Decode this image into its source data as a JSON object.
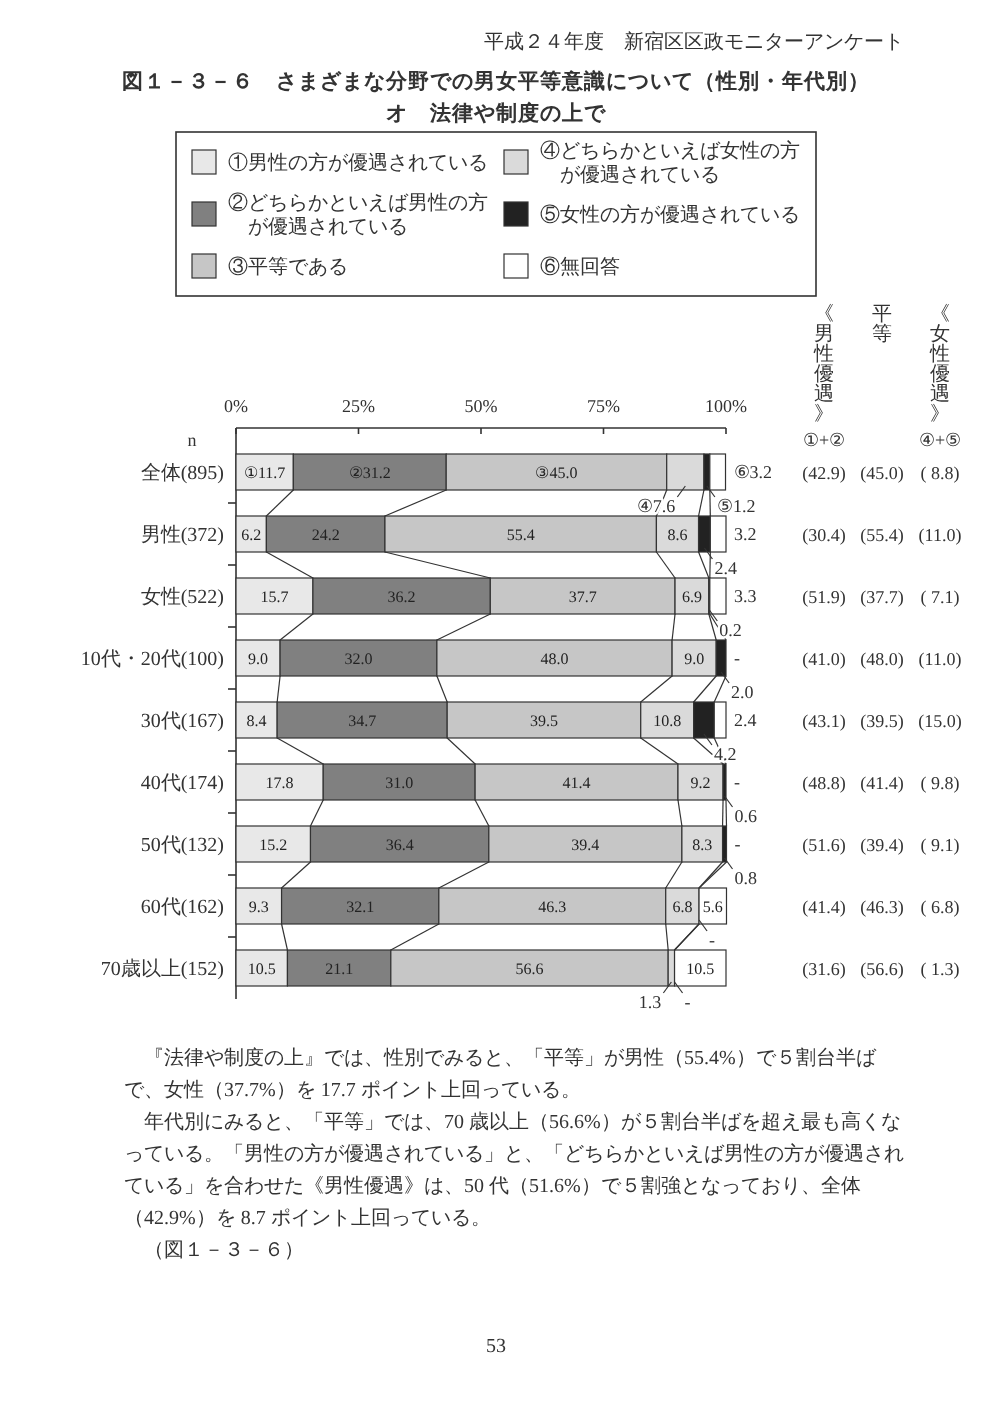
{
  "chart_data": {
    "type": "bar",
    "orientation": "horizontal",
    "stacked": true,
    "title": "図１－３－６　さまざまな分野での男女平等意識について（性別・年代別）",
    "subtitle": "オ　法律や制度の上で",
    "ylabel": "n",
    "categories": [
      "全体(895)",
      "男性(372)",
      "女性(522)",
      "10代・20代(100)",
      "30代(167)",
      "40代(174)",
      "50代(132)",
      "60代(162)",
      "70歳以上(152)"
    ],
    "series": [
      {
        "name": "①男性の方が優遇されている",
        "color": "#e8e8e8",
        "values": [
          11.7,
          6.2,
          15.7,
          9.0,
          8.4,
          17.8,
          15.2,
          9.3,
          10.5
        ],
        "value_labels": [
          "①11.7",
          "6.2",
          "15.7",
          "9.0",
          "8.4",
          "17.8",
          "15.2",
          "9.3",
          "10.5"
        ]
      },
      {
        "name": "②どちらかといえば男性の方が優遇されている",
        "color": "#808080",
        "values": [
          31.2,
          24.2,
          36.2,
          32.0,
          34.7,
          31.0,
          36.4,
          32.1,
          21.1
        ],
        "value_labels": [
          "②31.2",
          "24.2",
          "36.2",
          "32.0",
          "34.7",
          "31.0",
          "36.4",
          "32.1",
          "21.1"
        ]
      },
      {
        "name": "③平等である",
        "color": "#c6c6c6",
        "values": [
          45.0,
          55.4,
          37.7,
          48.0,
          39.5,
          41.4,
          39.4,
          46.3,
          56.6
        ],
        "value_labels": [
          "③45.0",
          "55.4",
          "37.7",
          "48.0",
          "39.5",
          "41.4",
          "39.4",
          "46.3",
          "56.6"
        ]
      },
      {
        "name": "④どちらかといえば女性の方が優遇されている",
        "color": "#dadada",
        "values": [
          7.6,
          8.6,
          6.9,
          9.0,
          10.8,
          9.2,
          8.3,
          6.8,
          1.3
        ],
        "value_labels": [
          "④7.6",
          "8.6",
          "6.9",
          "9.0",
          "10.8",
          "9.2",
          "8.3",
          "6.8",
          "1.3"
        ]
      },
      {
        "name": "⑤女性の方が優遇されている",
        "color": "#222222",
        "values": [
          1.2,
          2.4,
          0.2,
          2.0,
          4.2,
          0.6,
          0.8,
          0,
          0
        ],
        "value_labels": [
          "⑤1.2",
          "2.4",
          "0.2",
          "2.0",
          "4.2",
          "0.6",
          "0.8",
          "-",
          "-"
        ]
      },
      {
        "name": "⑥無回答",
        "color": "#ffffff",
        "values": [
          3.2,
          3.2,
          3.3,
          0,
          2.4,
          0,
          0,
          5.6,
          10.5
        ],
        "value_labels": [
          "⑥3.2",
          "3.2",
          "3.3",
          "-",
          "2.4",
          "-",
          "-",
          "5.6",
          "10.5"
        ]
      }
    ],
    "xlim": [
      0,
      100
    ],
    "xticks": [
      {
        "value": 0,
        "label": "0%"
      },
      {
        "value": 25,
        "label": "25%"
      },
      {
        "value": 50,
        "label": "50%"
      },
      {
        "value": 75,
        "label": "75%"
      },
      {
        "value": 100,
        "label": "100%"
      }
    ],
    "legend": "top",
    "annotations": [
      "平成２４年度　新宿区区政モニターアンケート",
      "《男性優遇》",
      "①+②",
      "平等",
      "《女性優遇》",
      "④+⑤",
      "(42.9)",
      "(45.0)",
      "( 8.8)",
      "(30.4)",
      "(55.4)",
      "(11.0)",
      "(51.9)",
      "(37.7)",
      "( 7.1)",
      "(41.0)",
      "(48.0)",
      "(11.0)",
      "(43.1)",
      "(39.5)",
      "(15.0)",
      "(48.8)",
      "(41.4)",
      "( 9.8)",
      "(51.6)",
      "(39.4)",
      "( 9.1)",
      "(41.4)",
      "(46.3)",
      "( 6.8)",
      "(31.6)",
      "(56.6)",
      "( 1.3)",
      "『法律や制度の上』では、性別でみると、「平等」が男性（55.4%）で５割台半ばで、女性（37.7%）を 17.7 ポイント上回っている。",
      "年代別にみると、「平等」では、70 歳以上（56.6%）が５割台半ばを超え最も高くなっている。「男性の方が優遇されている」と、「どちらかといえば男性の方が優遇されている」を合わせた《男性優遇》は、50 代（51.6%）で５割強となっており、全体（42.9%）を 8.7 ポイント上回っている。",
      "（図１－３－６）",
      "53"
    ]
  }
}
